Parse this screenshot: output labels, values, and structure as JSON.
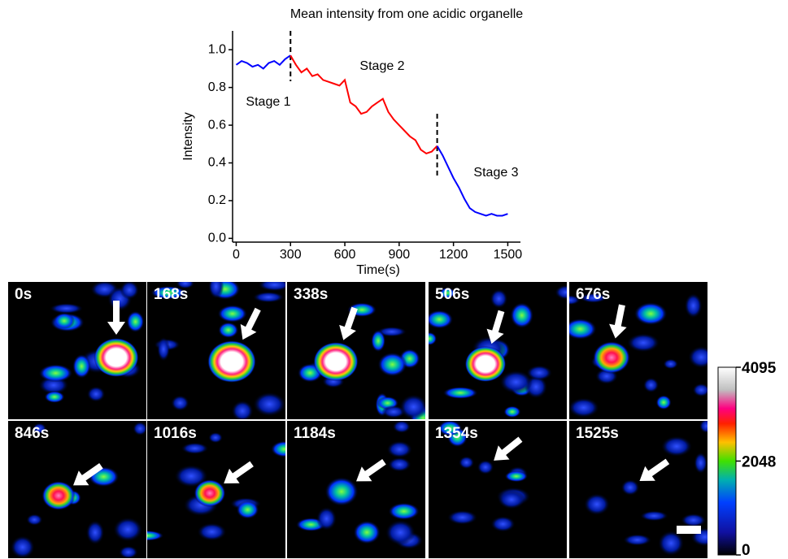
{
  "chart_data": {
    "type": "line",
    "title": "Mean intensity from one acidic organelle",
    "x_label": "Time(s)",
    "y_label": "Intensity",
    "xlim": [
      -20,
      1570
    ],
    "ylim": [
      -0.02,
      1.1
    ],
    "xticks": [
      0,
      300,
      600,
      900,
      1200,
      1500
    ],
    "yticks": [
      {
        "value": 0,
        "label": "0.0"
      },
      0.2,
      0.4,
      0.6,
      0.8,
      {
        "value": 1,
        "label": "1.0"
      }
    ],
    "vlines": [
      300,
      1110
    ],
    "annotations": [
      "Stage 1",
      "Stage 2",
      "Stage 3"
    ],
    "series": [
      {
        "name": "Stage 1",
        "color": "#0000ff",
        "x": [
          0,
          30,
          60,
          90,
          120,
          150,
          180,
          210,
          240,
          270,
          300
        ],
        "values": [
          0.92,
          0.94,
          0.93,
          0.91,
          0.92,
          0.9,
          0.93,
          0.94,
          0.92,
          0.95,
          0.97
        ]
      },
      {
        "name": "Stage 2",
        "color": "#ff0000",
        "x": [
          300,
          330,
          360,
          390,
          420,
          450,
          480,
          510,
          540,
          570,
          600,
          630,
          660,
          690,
          720,
          750,
          780,
          810,
          840,
          870,
          900,
          930,
          960,
          990,
          1020,
          1050,
          1080,
          1110
        ],
        "values": [
          0.97,
          0.92,
          0.88,
          0.9,
          0.86,
          0.87,
          0.84,
          0.83,
          0.82,
          0.81,
          0.84,
          0.72,
          0.7,
          0.66,
          0.67,
          0.7,
          0.72,
          0.74,
          0.67,
          0.63,
          0.6,
          0.57,
          0.54,
          0.52,
          0.47,
          0.45,
          0.46,
          0.49
        ]
      },
      {
        "name": "Stage 3",
        "color": "#0000ff",
        "x": [
          1110,
          1140,
          1170,
          1200,
          1230,
          1260,
          1290,
          1320,
          1350,
          1380,
          1410,
          1440,
          1470,
          1500
        ],
        "values": [
          0.49,
          0.44,
          0.38,
          0.32,
          0.27,
          0.21,
          0.16,
          0.14,
          0.13,
          0.12,
          0.13,
          0.12,
          0.12,
          0.13
        ]
      }
    ]
  },
  "panels": [
    "0s",
    "168s",
    "338s",
    "506s",
    "676s",
    "846s",
    "1016s",
    "1184s",
    "1354s",
    "1525s"
  ],
  "colorbar": {
    "lim": [
      0,
      4095
    ],
    "ticks": [
      0,
      2048,
      4095
    ]
  }
}
